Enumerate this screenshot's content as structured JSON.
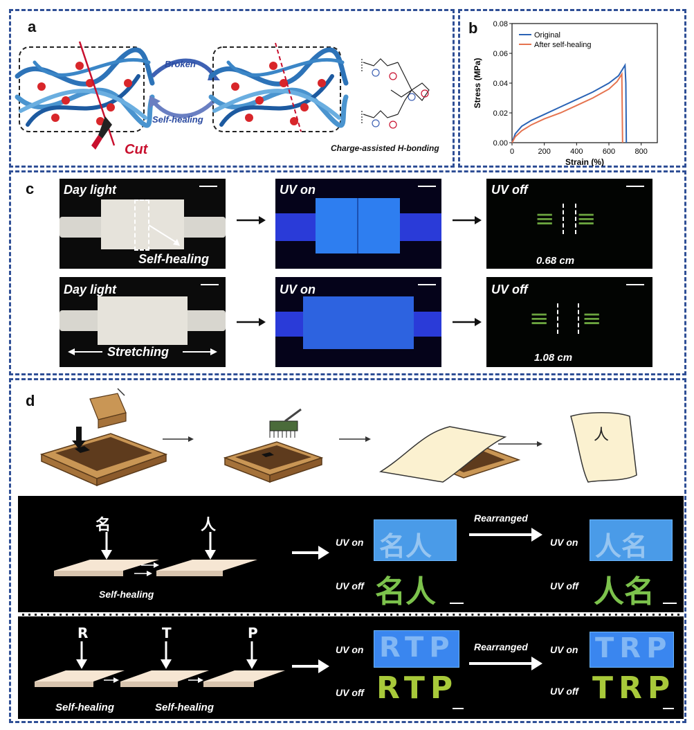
{
  "panel_a": {
    "label": "a",
    "broken": "Broken",
    "self_healing": "Self-healing",
    "cut": "Cut",
    "caption": "Charge-assisted H-bonding"
  },
  "panel_b": {
    "label": "b"
  },
  "chart_data": {
    "type": "line",
    "xlabel": "Strain (%)",
    "ylabel": "Stress (MPa)",
    "xlim": [
      0,
      900
    ],
    "ylim": [
      0,
      0.08
    ],
    "xticks": [
      "0",
      "200",
      "400",
      "600",
      "800"
    ],
    "yticks": [
      "0.00",
      "0.02",
      "0.04",
      "0.06",
      "0.08"
    ],
    "legend_position": "top-left",
    "series": [
      {
        "name": "Original",
        "color": "#2a63b5",
        "x": [
          0,
          20,
          60,
          120,
          200,
          300,
          400,
          500,
          600,
          660,
          700,
          705,
          708
        ],
        "y": [
          0,
          0.006,
          0.011,
          0.015,
          0.019,
          0.024,
          0.029,
          0.034,
          0.04,
          0.045,
          0.052,
          0.04,
          0.0
        ]
      },
      {
        "name": "After self-healing",
        "color": "#e5734f",
        "x": [
          0,
          20,
          60,
          120,
          200,
          300,
          400,
          500,
          600,
          650,
          680,
          685
        ],
        "y": [
          0,
          0.004,
          0.008,
          0.012,
          0.016,
          0.02,
          0.025,
          0.03,
          0.036,
          0.041,
          0.046,
          0.0
        ]
      }
    ]
  },
  "panel_c": {
    "label": "c",
    "row1": {
      "day": "Day light",
      "self_healing": "Self-healing",
      "uv_on": "UV on",
      "uv_off": "UV off",
      "dist": "0.68 cm"
    },
    "row2": {
      "day": "Day light",
      "stretching": "Stretching",
      "uv_on": "UV on",
      "uv_off": "UV off",
      "dist": "1.08 cm"
    }
  },
  "panel_d": {
    "label": "d",
    "stamp_char": "人",
    "row1": {
      "char1": "名",
      "char2": "人",
      "self_healing": "Self-healing",
      "uv_on": "UV on",
      "uv_off": "UV off",
      "rearranged": "Rearranged",
      "uv_on2": "UV on",
      "uv_off2": "UV off",
      "text_before": "名人",
      "text_after": "人名"
    },
    "row2": {
      "char1": "R",
      "char2": "T",
      "char3": "P",
      "self_healing1": "Self-healing",
      "self_healing2": "Self-healing",
      "uv_on": "UV on",
      "uv_off": "UV off",
      "rearranged": "Rearranged",
      "uv_on2": "UV on",
      "uv_off2": "UV off",
      "text_before": "RTP",
      "text_after": "TRP"
    }
  }
}
